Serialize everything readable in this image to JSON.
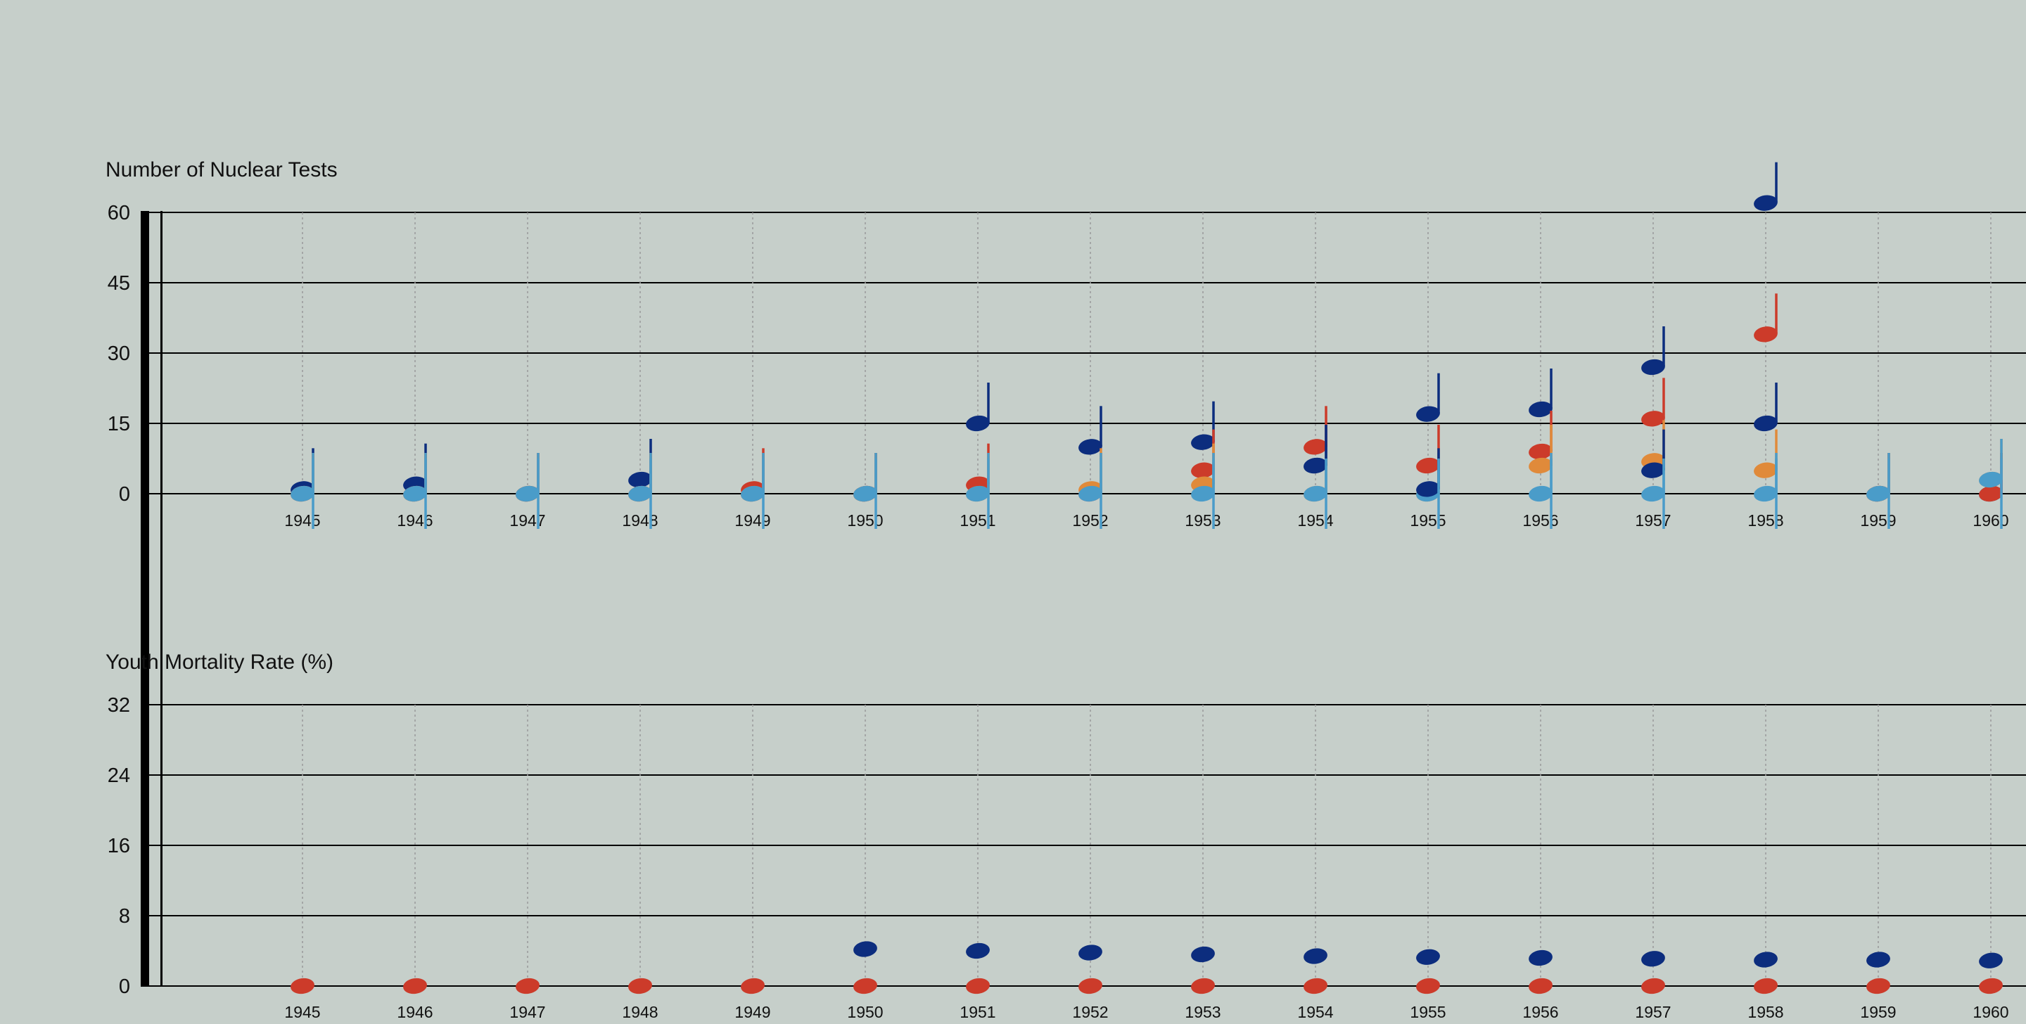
{
  "chart_data": [
    {
      "type": "scatter",
      "title": "Number of Nuclear Tests",
      "ylabel": "Number of Nuclear Tests",
      "yticks": [
        0,
        15,
        30,
        45,
        60
      ],
      "ylim": [
        0,
        60
      ],
      "categories": [
        "1945",
        "1946",
        "1947",
        "1948",
        "1949",
        "1950",
        "1951",
        "1952",
        "1953",
        "1954",
        "1955",
        "1956",
        "1957",
        "1958",
        "1959",
        "1960"
      ],
      "grid": "horizontal lines with dotted vertical lines per year",
      "series": [
        {
          "color": "#0c2d7e",
          "values": [
            1,
            2,
            0,
            3,
            0,
            0,
            15,
            10,
            11,
            6,
            17,
            18,
            27,
            62,
            0,
            0
          ]
        },
        {
          "color": "#cc3b2a",
          "values": [
            0,
            0,
            0,
            0,
            1,
            0,
            2,
            0,
            5,
            10,
            6,
            9,
            16,
            34,
            0,
            0
          ]
        },
        {
          "color": "#e08a3a",
          "values": [
            0,
            0,
            0,
            0,
            0,
            0,
            0,
            1,
            2,
            0,
            0,
            6,
            7,
            5,
            0,
            3
          ]
        },
        {
          "color": "#4a9cc9",
          "values": [
            0,
            0,
            0,
            0,
            0,
            0,
            0,
            0,
            0,
            0,
            0,
            0,
            0,
            0,
            0,
            3
          ]
        }
      ],
      "extra_notes": [
        {
          "category": "1954",
          "color": "#0c2d7e",
          "value": 6
        },
        {
          "category": "1955",
          "color": "#0c2d7e",
          "value": 1
        },
        {
          "category": "1957",
          "color": "#0c2d7e",
          "value": 5
        },
        {
          "category": "1958",
          "color": "#0c2d7e",
          "value": 15
        }
      ]
    },
    {
      "type": "scatter",
      "title": "Youth Mortality Rate (%)",
      "ylabel": "Youth Mortality Rate (%)",
      "yticks": [
        0,
        8,
        16,
        24,
        32
      ],
      "ylim": [
        0,
        32
      ],
      "categories": [
        "1945",
        "1946",
        "1947",
        "1948",
        "1949",
        "1950",
        "1951",
        "1952",
        "1953",
        "1954",
        "1955",
        "1956",
        "1957",
        "1958",
        "1959",
        "1960"
      ],
      "grid": "horizontal lines with dotted vertical lines per year",
      "series": [
        {
          "color": "#0c2d7e",
          "values": [
            null,
            null,
            null,
            null,
            null,
            4.2,
            4.0,
            3.8,
            3.6,
            3.4,
            3.3,
            3.2,
            3.1,
            3.0,
            3.0,
            2.9
          ]
        },
        {
          "color": "#cc3b2a",
          "values": [
            0,
            0,
            0,
            0,
            0,
            0,
            0,
            0,
            0,
            0,
            0,
            0,
            0,
            0,
            0,
            0
          ]
        }
      ]
    }
  ]
}
